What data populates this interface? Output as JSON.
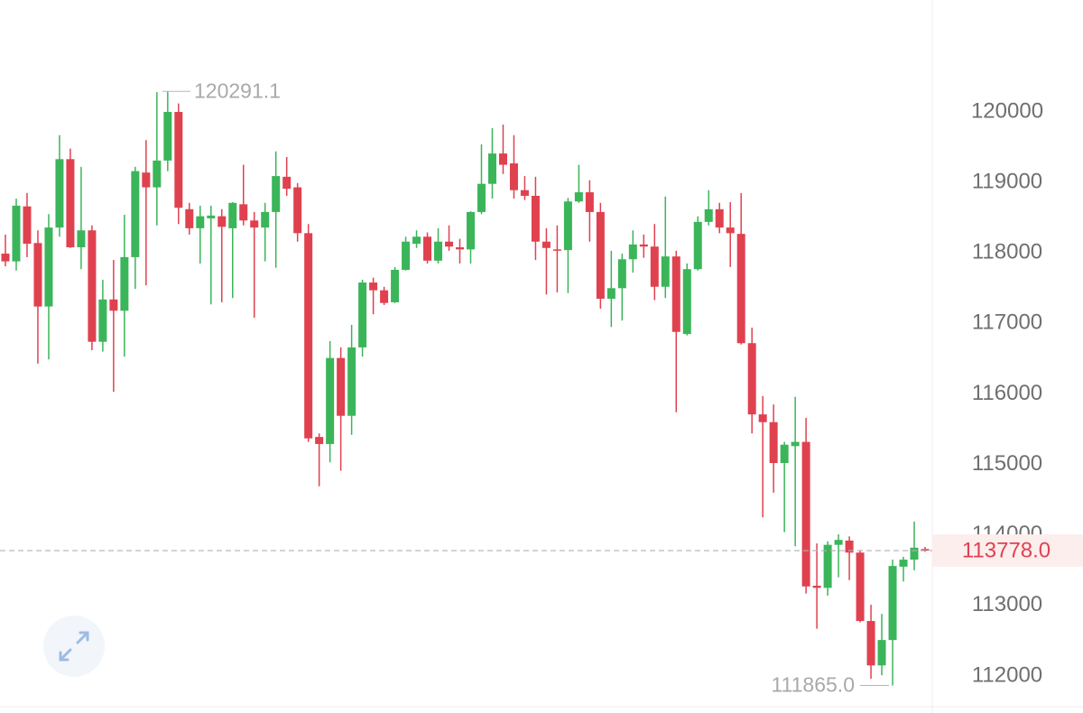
{
  "chart_data": {
    "type": "candlestick",
    "up_color": "#3bb55a",
    "down_color": "#e0414f",
    "ylim": [
      111475,
      121587
    ],
    "yticks": [
      112000,
      113000,
      114000,
      115000,
      116000,
      117000,
      118000,
      119000,
      120000
    ],
    "open": [
      117990,
      117880,
      118660,
      118140,
      117240,
      118360,
      119330,
      118080,
      118320,
      116740,
      117340,
      117180,
      117940,
      119140,
      118930,
      119310,
      120000,
      118620,
      118350,
      118490,
      118520,
      118350,
      118690,
      118460,
      118360,
      118580,
      119080,
      118930,
      118280,
      115390,
      115290,
      116510,
      115690,
      116660,
      117580,
      117470,
      117300,
      117760,
      118130,
      118230,
      117890,
      118160,
      118080,
      118050,
      118580,
      118980,
      119410,
      119270,
      118890,
      118810,
      118160,
      118050,
      118040,
      118730,
      118860,
      118580,
      117350,
      117500,
      117910,
      118120,
      118090,
      117520,
      117950,
      116850,
      117770,
      118440,
      118620,
      118360,
      118270,
      116720,
      115710,
      115600,
      115020,
      115260,
      115320,
      113280,
      113250,
      113860,
      113920,
      113750,
      112780,
      112150,
      112510,
      113550,
      113650,
      113800
    ],
    "high": [
      118260,
      118770,
      118850,
      118320,
      118550,
      119670,
      119480,
      119220,
      118390,
      117620,
      117900,
      118540,
      119220,
      119600,
      120280,
      120291.1,
      120120,
      118710,
      118670,
      118670,
      118620,
      118720,
      119250,
      118580,
      118710,
      119440,
      119360,
      118990,
      118410,
      115440,
      116750,
      116660,
      116980,
      117620,
      117650,
      117520,
      117800,
      118230,
      118320,
      118290,
      118350,
      118390,
      118200,
      118590,
      119540,
      119770,
      119820,
      119670,
      119090,
      119080,
      118350,
      118390,
      118780,
      119250,
      119030,
      118710,
      118030,
      117990,
      118320,
      118260,
      118410,
      118800,
      118030,
      117850,
      118520,
      118890,
      118710,
      118720,
      118850,
      116940,
      115970,
      115850,
      115320,
      115960,
      115660,
      113880,
      113910,
      114010,
      113980,
      113780,
      113010,
      112880,
      113650,
      113690,
      114190,
      113830
    ],
    "low": [
      117810,
      117750,
      117940,
      116430,
      116490,
      118230,
      118070,
      117770,
      116620,
      116600,
      116030,
      116530,
      117490,
      117540,
      118390,
      119160,
      118410,
      118260,
      117850,
      117270,
      117300,
      117360,
      118390,
      117080,
      117880,
      117790,
      118810,
      118160,
      115320,
      114690,
      115030,
      114910,
      115420,
      116530,
      117130,
      117260,
      117290,
      117750,
      118070,
      117850,
      117850,
      118030,
      117850,
      117850,
      118550,
      118770,
      119120,
      118770,
      118750,
      117900,
      117410,
      117440,
      117430,
      118710,
      118160,
      117210,
      116950,
      117040,
      117720,
      117930,
      117330,
      117360,
      115740,
      116830,
      117750,
      118390,
      118280,
      117800,
      116700,
      115440,
      114250,
      114600,
      114040,
      113840,
      113170,
      112670,
      113140,
      113400,
      113360,
      112760,
      111960,
      112010,
      111865,
      113340,
      113500,
      113760
    ],
    "close": [
      117880,
      118670,
      118130,
      117240,
      118360,
      119330,
      118080,
      118320,
      116740,
      117340,
      117180,
      117940,
      119160,
      118930,
      119310,
      120000,
      118640,
      118350,
      118520,
      118530,
      118370,
      118710,
      118460,
      118360,
      118580,
      119090,
      118910,
      118280,
      115370,
      115290,
      116510,
      115690,
      116660,
      117580,
      117470,
      117290,
      117760,
      118160,
      118230,
      117890,
      118160,
      118090,
      118050,
      118580,
      118980,
      119410,
      119250,
      118890,
      118810,
      118160,
      118070,
      118040,
      118730,
      118860,
      118580,
      117350,
      117500,
      117910,
      118120,
      118090,
      117520,
      117950,
      116880,
      117770,
      118440,
      118620,
      118360,
      118280,
      116720,
      115710,
      115600,
      115020,
      115280,
      115320,
      113270,
      113250,
      113860,
      113930,
      113750,
      112780,
      112150,
      112510,
      113560,
      113650,
      113820,
      113778
    ],
    "high_marker": {
      "value": 120291.1,
      "label": "120291.1"
    },
    "low_marker": {
      "value": 111865,
      "label": "111865.0"
    },
    "current_price": {
      "value": 113778,
      "label": "113778.0"
    }
  }
}
